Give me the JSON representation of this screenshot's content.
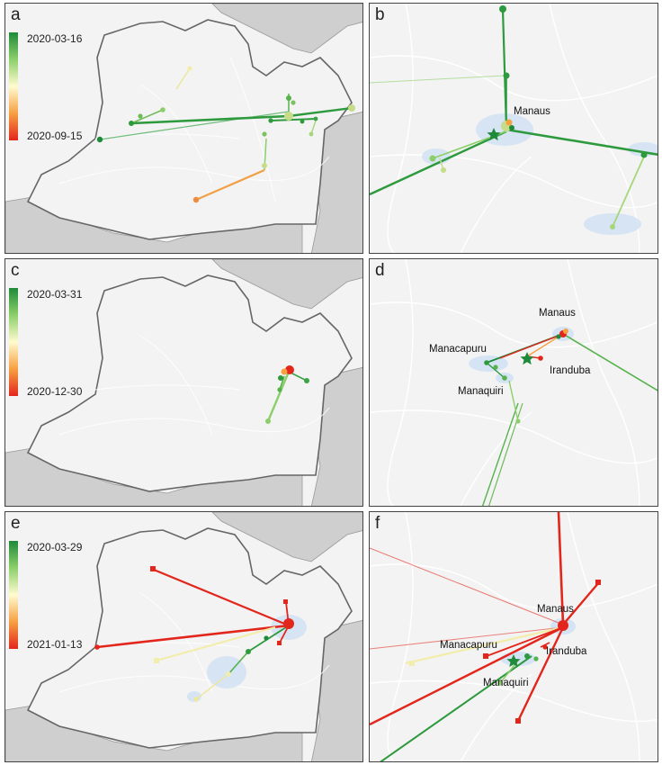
{
  "panels": {
    "a": {
      "label": "a",
      "date_start": "2020-03-16",
      "date_end": "2020-09-15"
    },
    "b": {
      "label": "b",
      "cities": {
        "manaus": "Manaus"
      }
    },
    "c": {
      "label": "c",
      "date_start": "2020-03-31",
      "date_end": "2020-12-30"
    },
    "d": {
      "label": "d",
      "cities": {
        "manaus": "Manaus",
        "manacapuru": "Manacapuru",
        "iranduba": "Iranduba",
        "manaquiri": "Manaquiri"
      }
    },
    "e": {
      "label": "e",
      "date_start": "2020-03-29",
      "date_end": "2021-01-13"
    },
    "f": {
      "label": "f",
      "cities": {
        "manaus": "Manaus",
        "manacapuru": "Manacapuru",
        "iranduba": "Iranduba",
        "manaquiri": "Manaquiri"
      }
    }
  },
  "colors": {
    "early": "#1f8a3a",
    "mid": "#fff5b0",
    "late": "#e3261c",
    "state_fill": "#f3f3f3",
    "outside_fill": "#cfcfcf",
    "hpd_blue": "#cfe0f3"
  }
}
